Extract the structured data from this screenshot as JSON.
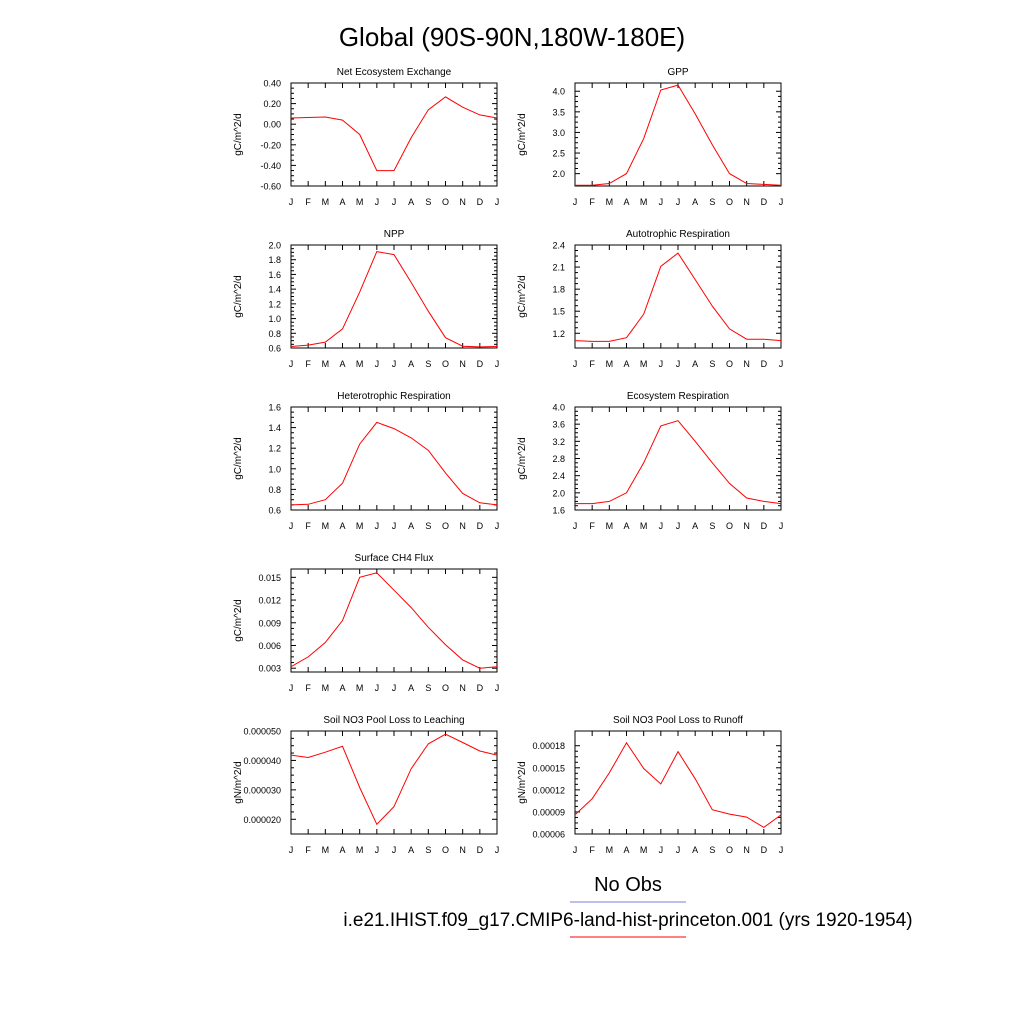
{
  "page": {
    "title": "Global (90S-90N,180W-180E)"
  },
  "legend": {
    "obs_label": "No Obs",
    "obs_color": "#7b7bdc",
    "model_label": "i.e21.IHIST.f09_g17.CMIP6-land-hist-princeton.001 (yrs 1920-1954)",
    "model_color": "#ff0000"
  },
  "chart_data": [
    {
      "type": "line",
      "title": "Net Ecosystem Exchange",
      "ylabel": "gC/m^2/d",
      "x": [
        "J",
        "F",
        "M",
        "A",
        "M",
        "J",
        "J",
        "A",
        "S",
        "O",
        "N",
        "D",
        "J"
      ],
      "values": [
        0.06,
        0.065,
        0.07,
        0.04,
        -0.1,
        -0.45,
        -0.45,
        -0.13,
        0.14,
        0.265,
        0.165,
        0.09,
        0.06
      ],
      "ylim": [
        -0.6,
        0.4
      ],
      "yticks": [
        -0.6,
        -0.4,
        -0.2,
        0.0,
        0.2,
        0.4
      ],
      "ytick_labels": [
        "-0.60",
        "-0.40",
        "-0.20",
        "0.00",
        "0.20",
        "0.40"
      ],
      "line_color": "#ff0000"
    },
    {
      "type": "line",
      "title": "GPP",
      "ylabel": "gC/m^2/d",
      "x": [
        "J",
        "F",
        "M",
        "A",
        "M",
        "J",
        "J",
        "A",
        "S",
        "O",
        "N",
        "D",
        "J"
      ],
      "values": [
        1.72,
        1.72,
        1.76,
        2.0,
        2.85,
        4.03,
        4.15,
        3.45,
        2.7,
        2.0,
        1.76,
        1.74,
        1.72
      ],
      "ylim": [
        1.7,
        4.2
      ],
      "yticks": [
        2.0,
        2.5,
        3.0,
        3.5,
        4.0
      ],
      "ytick_labels": [
        "2.0",
        "2.5",
        "3.0",
        "3.5",
        "4.0"
      ],
      "line_color": "#ff0000"
    },
    {
      "type": "line",
      "title": "NPP",
      "ylabel": "gC/m^2/d",
      "x": [
        "J",
        "F",
        "M",
        "A",
        "M",
        "J",
        "J",
        "A",
        "S",
        "O",
        "N",
        "D",
        "J"
      ],
      "values": [
        0.62,
        0.64,
        0.68,
        0.86,
        1.36,
        1.91,
        1.87,
        1.49,
        1.1,
        0.74,
        0.625,
        0.615,
        0.62
      ],
      "ylim": [
        0.6,
        2.0
      ],
      "yticks": [
        0.6,
        0.8,
        1.0,
        1.2,
        1.4,
        1.6,
        1.8,
        2.0
      ],
      "ytick_labels": [
        "0.6",
        "0.8",
        "1.0",
        "1.2",
        "1.4",
        "1.6",
        "1.8",
        "2.0"
      ],
      "line_color": "#ff0000"
    },
    {
      "type": "line",
      "title": "Autotrophic Respiration",
      "ylabel": "gC/m^2/d",
      "x": [
        "J",
        "F",
        "M",
        "A",
        "M",
        "J",
        "J",
        "A",
        "S",
        "O",
        "N",
        "D",
        "J"
      ],
      "values": [
        1.1,
        1.09,
        1.09,
        1.14,
        1.46,
        2.11,
        2.29,
        1.93,
        1.57,
        1.26,
        1.12,
        1.12,
        1.1
      ],
      "ylim": [
        1.0,
        2.4
      ],
      "yticks": [
        1.2,
        1.5,
        1.8,
        2.1,
        2.4
      ],
      "ytick_labels": [
        "1.2",
        "1.5",
        "1.8",
        "2.1",
        "2.4"
      ],
      "line_color": "#ff0000"
    },
    {
      "type": "line",
      "title": "Heterotrophic Respiration",
      "ylabel": "gC/m^2/d",
      "x": [
        "J",
        "F",
        "M",
        "A",
        "M",
        "J",
        "J",
        "A",
        "S",
        "O",
        "N",
        "D",
        "J"
      ],
      "values": [
        0.65,
        0.655,
        0.7,
        0.86,
        1.24,
        1.45,
        1.39,
        1.3,
        1.18,
        0.96,
        0.76,
        0.67,
        0.65
      ],
      "ylim": [
        0.6,
        1.6
      ],
      "yticks": [
        0.6,
        0.8,
        1.0,
        1.2,
        1.4,
        1.6
      ],
      "ytick_labels": [
        "0.6",
        "0.8",
        "1.0",
        "1.2",
        "1.4",
        "1.6"
      ],
      "line_color": "#ff0000"
    },
    {
      "type": "line",
      "title": "Ecosystem Respiration",
      "ylabel": "gC/m^2/d",
      "x": [
        "J",
        "F",
        "M",
        "A",
        "M",
        "J",
        "J",
        "A",
        "S",
        "O",
        "N",
        "D",
        "J"
      ],
      "values": [
        1.75,
        1.75,
        1.8,
        2.0,
        2.7,
        3.56,
        3.68,
        3.2,
        2.7,
        2.22,
        1.88,
        1.8,
        1.75
      ],
      "ylim": [
        1.6,
        4.0
      ],
      "yticks": [
        1.6,
        2.0,
        2.4,
        2.8,
        3.2,
        3.6,
        4.0
      ],
      "ytick_labels": [
        "1.6",
        "2.0",
        "2.4",
        "2.8",
        "3.2",
        "3.6",
        "4.0"
      ],
      "line_color": "#ff0000"
    },
    {
      "type": "line",
      "title": "Surface CH4 Flux",
      "ylabel": "gC/m^2/d",
      "x": [
        "J",
        "F",
        "M",
        "A",
        "M",
        "J",
        "J",
        "A",
        "S",
        "O",
        "N",
        "D",
        "J"
      ],
      "values": [
        0.0032,
        0.0045,
        0.0064,
        0.0093,
        0.015,
        0.0156,
        0.0133,
        0.011,
        0.0084,
        0.0061,
        0.0041,
        0.003,
        0.0032
      ],
      "ylim": [
        0.0025,
        0.0161
      ],
      "yticks": [
        0.003,
        0.006,
        0.009,
        0.012,
        0.015
      ],
      "ytick_labels": [
        "0.003",
        "0.006",
        "0.009",
        "0.012",
        "0.015"
      ],
      "line_color": "#ff0000"
    },
    {
      "type": "line",
      "title": "Soil NO3 Pool Loss to Leaching",
      "ylabel": "gN/m^2/d",
      "x": [
        "J",
        "F",
        "M",
        "A",
        "M",
        "J",
        "J",
        "A",
        "S",
        "O",
        "N",
        "D",
        "J"
      ],
      "values": [
        4.18e-05,
        4.1e-05,
        4.28e-05,
        4.48e-05,
        3.08e-05,
        1.83e-05,
        2.43e-05,
        3.72e-05,
        4.56e-05,
        4.89e-05,
        4.61e-05,
        4.32e-05,
        4.18e-05
      ],
      "ylim": [
        1.5e-05,
        5e-05
      ],
      "yticks": [
        2e-05,
        3e-05,
        4e-05,
        5e-05
      ],
      "ytick_labels": [
        "0.000020",
        "0.000030",
        "0.000040",
        "0.000050"
      ],
      "line_color": "#ff0000"
    },
    {
      "type": "line",
      "title": "Soil NO3 Pool Loss to Runoff",
      "ylabel": "gN/m^2/d",
      "x": [
        "J",
        "F",
        "M",
        "A",
        "M",
        "J",
        "J",
        "A",
        "S",
        "O",
        "N",
        "D",
        "J"
      ],
      "values": [
        8.6e-05,
        0.000108,
        0.000143,
        0.000184,
        0.000149,
        0.000128,
        0.000172,
        0.000135,
        9.3e-05,
        8.7e-05,
        8.3e-05,
        6.9e-05,
        8.6e-05
      ],
      "ylim": [
        6e-05,
        0.0002
      ],
      "yticks": [
        6e-05,
        9e-05,
        0.00012,
        0.00015,
        0.00018
      ],
      "ytick_labels": [
        "0.00006",
        "0.00009",
        "0.00012",
        "0.00015",
        "0.00018"
      ],
      "line_color": "#ff0000"
    }
  ]
}
